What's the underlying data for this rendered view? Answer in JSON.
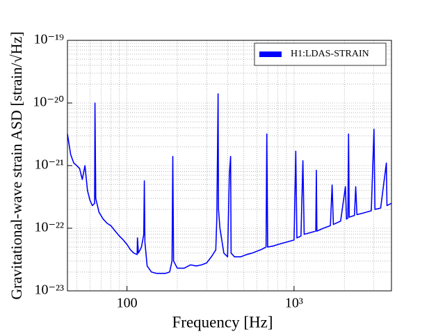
{
  "chart_data": {
    "type": "line",
    "xlabel": "Frequency [Hz]",
    "ylabel": "Gravitational-wave strain ASD [strain/√Hz]",
    "xscale": "log",
    "yscale": "log",
    "grid": true,
    "legend": "upper right",
    "xlim": [
      44,
      3830
    ],
    "ylim": [
      1e-23,
      1e-19
    ],
    "xticks": [
      100,
      {
        "value": 1000,
        "label": "10³"
      }
    ],
    "yticks": [
      {
        "value": 1e-23,
        "label": "10⁻²³"
      },
      {
        "value": 1e-22,
        "label": "10⁻²²"
      },
      {
        "value": 1e-21,
        "label": "10⁻²¹"
      },
      {
        "value": 1e-20,
        "label": "10⁻²⁰"
      },
      {
        "value": 1e-19,
        "label": "10⁻¹⁹"
      }
    ],
    "xminorticks": [
      50,
      60,
      70,
      80,
      90,
      200,
      300,
      400,
      500,
      600,
      700,
      800,
      900,
      2000,
      3000
    ],
    "yminorticks": [
      2e-23,
      3e-23,
      4e-23,
      5e-23,
      6e-23,
      7e-23,
      8e-23,
      9e-23,
      2e-22,
      3e-22,
      4e-22,
      5e-22,
      6e-22,
      7e-22,
      8e-22,
      9e-22,
      2e-21,
      3e-21,
      4e-21,
      5e-21,
      6e-21,
      7e-21,
      8e-21,
      9e-21,
      2e-20,
      3e-20,
      4e-20,
      5e-20,
      6e-20,
      7e-20,
      8e-20,
      9e-20
    ],
    "x": [
      44,
      46,
      48,
      50,
      52,
      54,
      56,
      58,
      60,
      62,
      64,
      64.3,
      65,
      68,
      72,
      76,
      80,
      85,
      90,
      95,
      100,
      105,
      110,
      115,
      115.5,
      117,
      122,
      126,
      127,
      128,
      132,
      140,
      150,
      160,
      170,
      180,
      186,
      188,
      190,
      200,
      220,
      240,
      260,
      280,
      300,
      320,
      340,
      345,
      351,
      353,
      360,
      380,
      400,
      410,
      417,
      420,
      440,
      480,
      520,
      560,
      600,
      640,
      680,
      687,
      695,
      750,
      800,
      900,
      1000,
      1024,
      1040,
      1100,
      1130,
      1150,
      1250,
      1350,
      1360,
      1370,
      1500,
      1650,
      1690,
      1720,
      1900,
      2030,
      2060,
      2100,
      2120,
      2140,
      2300,
      2340,
      2380,
      2600,
      2900,
      3010,
      3050,
      3300,
      3570,
      3600,
      3830
    ],
    "series": [
      {
        "name": "H1:LDAS-STRAIN",
        "color": "#0000ff",
        "values": [
          3.2e-21,
          1.5e-21,
          1.1e-21,
          1e-21,
          9e-22,
          6e-22,
          1e-21,
          4e-22,
          2.8e-22,
          2.3e-22,
          2.5e-22,
          1e-20,
          3e-22,
          1.8e-22,
          1.4e-22,
          1.2e-22,
          1.1e-22,
          9e-23,
          7.5e-23,
          6.5e-23,
          5.5e-23,
          4.5e-23,
          4e-23,
          3.8e-23,
          7e-23,
          4e-23,
          5e-23,
          8e-23,
          5.7e-22,
          6e-23,
          2.5e-23,
          2e-23,
          1.9e-23,
          1.9e-23,
          1.9e-23,
          2e-23,
          3e-23,
          1.4e-21,
          3e-23,
          2.3e-23,
          2.3e-23,
          2.6e-23,
          2.5e-23,
          2.6e-23,
          2.8e-23,
          3.5e-23,
          4.5e-23,
          1.5e-22,
          1.4e-20,
          2e-22,
          1e-22,
          4e-23,
          3.5e-23,
          7.4e-22,
          1.4e-21,
          4e-23,
          3.5e-23,
          3.5e-23,
          3.8e-23,
          4e-23,
          4.3e-23,
          4.6e-23,
          5e-23,
          3.2e-21,
          5e-23,
          5.2e-23,
          5.5e-23,
          6e-23,
          6.5e-23,
          1.7e-21,
          7e-23,
          7.5e-23,
          1.2e-21,
          8e-23,
          8.5e-23,
          9e-23,
          8.4e-22,
          9e-23,
          1e-22,
          1.1e-22,
          4.9e-22,
          1.15e-22,
          1.3e-22,
          4.6e-22,
          1.4e-22,
          1.45e-22,
          3.2e-21,
          1.5e-22,
          1.6e-22,
          4.6e-22,
          1.65e-22,
          1.75e-22,
          1.9e-22,
          3.8e-21,
          2e-22,
          2.1e-22,
          1.1e-21,
          2.3e-22,
          2.5e-22
        ]
      }
    ]
  }
}
